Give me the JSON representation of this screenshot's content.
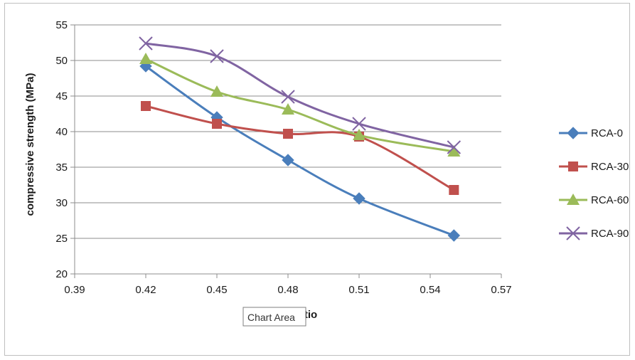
{
  "chart_data": {
    "type": "line",
    "xlabel": "w/c ratio",
    "xlabel_visible": "tio",
    "ylabel": "compressive strength (MPa)",
    "xlim": [
      0.39,
      0.57
    ],
    "ylim": [
      20,
      55
    ],
    "x_ticks": [
      "0.39",
      "0.42",
      "0.45",
      "0.48",
      "0.51",
      "0.54",
      "0.57"
    ],
    "y_ticks": [
      "20",
      "25",
      "30",
      "35",
      "40",
      "45",
      "50",
      "55"
    ],
    "x": [
      0.42,
      0.45,
      0.48,
      0.51,
      0.55
    ],
    "grid": "horizontal",
    "legend_position": "right",
    "series": [
      {
        "name": "RCA-0",
        "color": "#4a7ebb",
        "marker": "diamond",
        "values": [
          49.2,
          42.0,
          36.0,
          30.6,
          25.4
        ]
      },
      {
        "name": "RCA-30",
        "color": "#c0504d",
        "marker": "square",
        "values": [
          43.6,
          41.1,
          39.7,
          39.3,
          31.8
        ]
      },
      {
        "name": "RCA-60",
        "color": "#9bbb59",
        "marker": "triangle",
        "values": [
          50.2,
          45.6,
          43.1,
          39.5,
          37.2
        ]
      },
      {
        "name": "RCA-90",
        "color": "#8064a2",
        "marker": "x",
        "values": [
          52.4,
          50.6,
          44.9,
          41.1,
          37.8
        ]
      }
    ]
  },
  "tooltip": {
    "label": "Chart Area"
  }
}
